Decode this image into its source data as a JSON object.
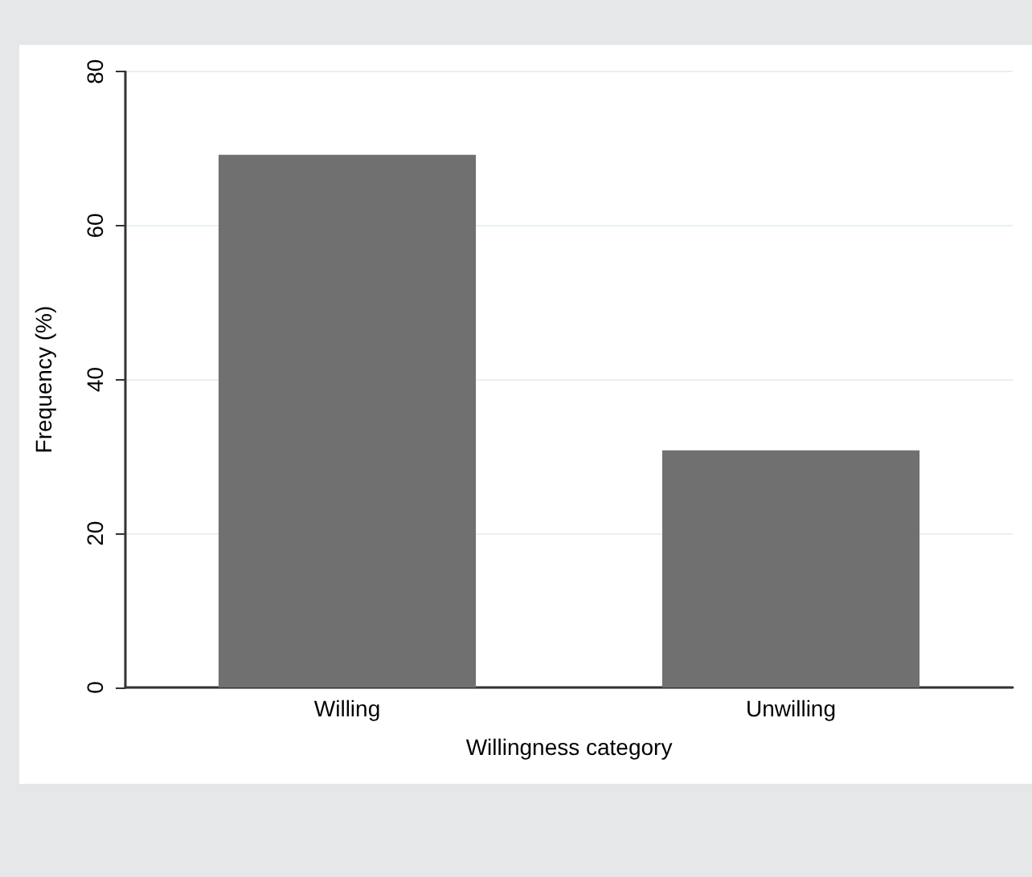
{
  "chart_data": {
    "type": "bar",
    "xlabel": "Willingness category",
    "ylabel": "Frequency (%)",
    "categories": [
      "Willing",
      "Unwilling"
    ],
    "series": [
      {
        "color": "#707070",
        "values": [
          69.2,
          30.8
        ]
      }
    ],
    "ylim": [
      0,
      80
    ],
    "yticks": [
      0,
      20,
      40,
      60,
      80
    ],
    "grid": "y"
  }
}
